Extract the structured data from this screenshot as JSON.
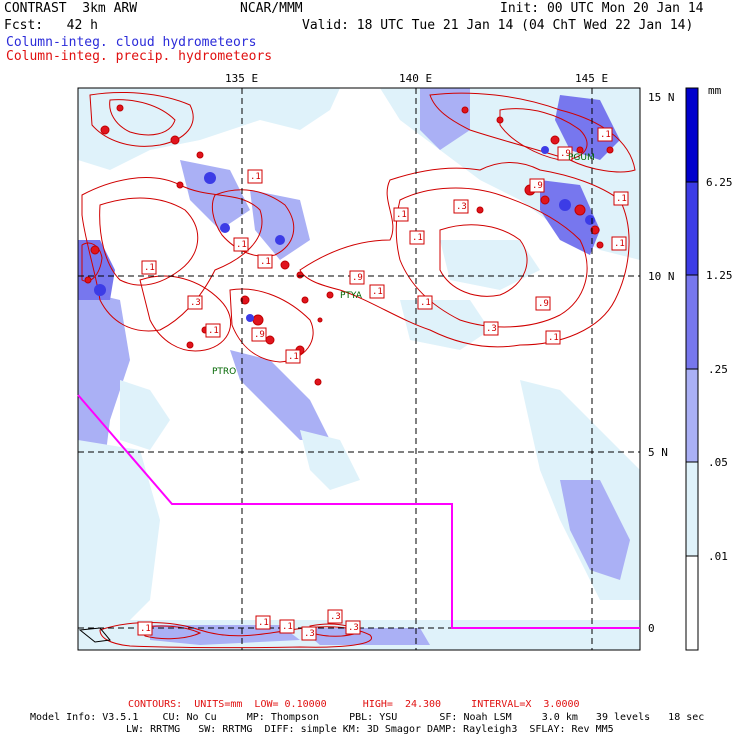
{
  "header": {
    "model": "CONTRAST  3km ARW",
    "org": "NCAR/MMM",
    "init": "Init: 00 UTC Mon 20 Jan 14",
    "fcst": "Fcst:   42 h",
    "valid": "Valid: 18 UTC Tue 21 Jan 14 (04 ChT Wed 22 Jan 14)",
    "legend_cloud": "Column-integ. cloud hydrometeors",
    "legend_precip": "Column-integ. precip. hydrometeors"
  },
  "map": {
    "lon_labels": [
      "135 E",
      "140 E",
      "145 E"
    ],
    "lat_labels": [
      "15 N",
      "10 N",
      "5 N",
      "0"
    ],
    "stations": [
      "PGUM",
      "PTYA",
      "PTRO"
    ],
    "contour_labels": [
      ".1",
      ".1",
      ".1",
      ".1",
      ".3",
      ".1",
      ".9",
      ".1",
      ".9",
      ".1",
      ".3",
      ".1",
      ".1",
      ".1",
      ".9",
      ".3",
      ".9",
      ".1",
      ".1",
      ".1",
      ".9",
      ".1",
      ".3",
      ".1",
      ".1",
      ".1",
      ".3",
      ".3"
    ]
  },
  "colorbar": {
    "unit": "mm",
    "levels": [
      "6.25",
      "1.25",
      ".25",
      ".05",
      ".01"
    ],
    "colors": [
      "#0000cc",
      "#3c3ce6",
      "#7777ee",
      "#aab0f5",
      "#dff2fa",
      "#ffffff"
    ]
  },
  "footer": {
    "contours": "CONTOURS:  UNITS=mm  LOW= 0.10000      HIGH=  24.300     INTERVAL=X  3.0000",
    "model_info": "Model Info: V3.5.1    CU: No Cu     MP: Thompson     PBL: YSU       SF: Noah LSM     3.0 km   39 levels   18 sec",
    "physics": "LW: RRTMG   SW: RRTMG  DIFF: simple KM: 3D Smagor DAMP: Rayleigh3  SFLAY: Rev MM5"
  },
  "colors": {
    "boundary": "#ff00ff",
    "contour": "#d00000",
    "station": "#006600"
  }
}
